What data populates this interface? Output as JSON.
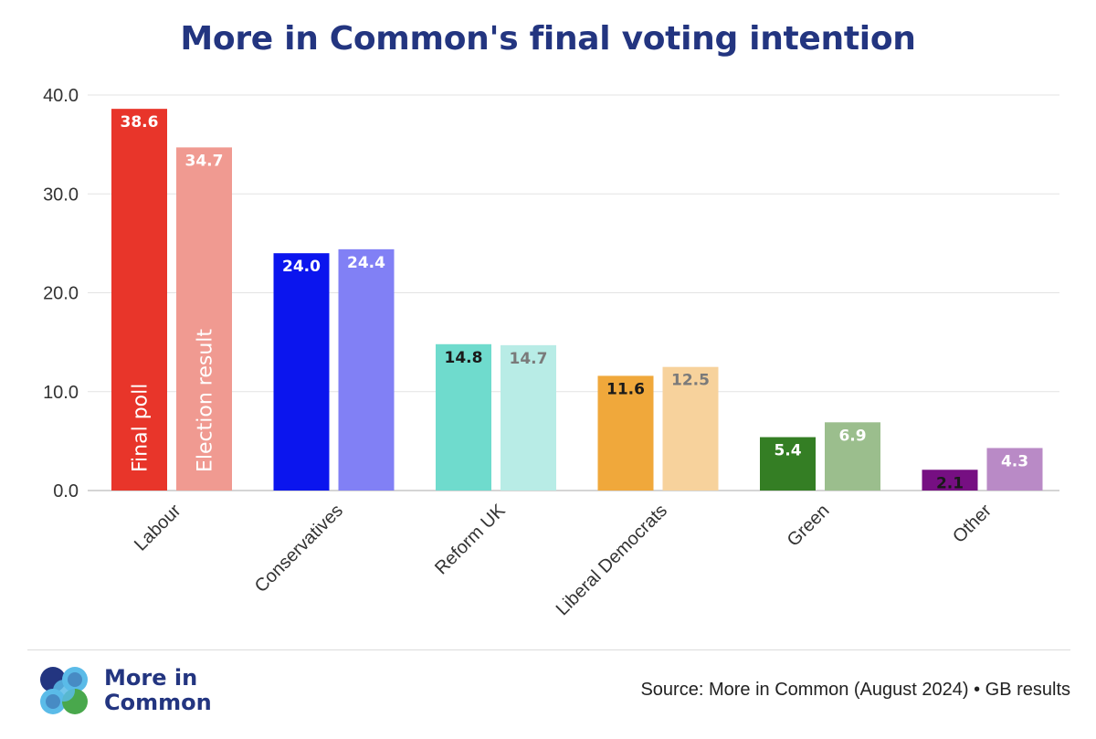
{
  "chart_data": {
    "type": "bar",
    "title": "More in Common's final voting intention",
    "categories": [
      "Labour",
      "Conservatives",
      "Reform UK",
      "Liberal Democrats",
      "Green",
      "Other"
    ],
    "series": [
      {
        "name": "Final poll",
        "values": [
          38.6,
          24.0,
          14.8,
          11.6,
          5.4,
          2.1
        ]
      },
      {
        "name": "Election result",
        "values": [
          34.7,
          24.4,
          14.7,
          12.5,
          6.9,
          4.3
        ]
      }
    ],
    "value_labels": {
      "Final poll": [
        "38.6",
        "24.0",
        "14.8",
        "11.6",
        "5.4",
        "2.1"
      ],
      "Election result": [
        "34.7",
        "24.4",
        "14.7",
        "12.5",
        "6.9",
        "4.3"
      ]
    },
    "colors": {
      "Final poll": [
        "#e8352a",
        "#0b15ee",
        "#6fdbcd",
        "#f0a83b",
        "#347e24",
        "#760f82"
      ],
      "Election result": [
        "#f09a91",
        "#8180f5",
        "#b8ece6",
        "#f7d29c",
        "#9bbe8d",
        "#b98ac6"
      ]
    },
    "label_colors": {
      "Final poll": [
        "#ffffff",
        "#ffffff",
        "#1a1a1a",
        "#1a1a1a",
        "#ffffff",
        "#1a1a1a"
      ],
      "Election result": [
        "#ffffff",
        "#ffffff",
        "#7a7a7a",
        "#7a7a7a",
        "#ffffff",
        "#ffffff"
      ]
    },
    "ylim": [
      0,
      40
    ],
    "yticks": [
      "0.0",
      "10.0",
      "20.0",
      "30.0",
      "40.0"
    ],
    "ytick_values": [
      0,
      10,
      20,
      30,
      40
    ],
    "grid": true,
    "legend": "inside first group bars (vertical text)",
    "xlabel": "",
    "ylabel": ""
  },
  "brand": {
    "name": "More in Common",
    "line1": "More in",
    "line2": "Common"
  },
  "source": "Source: More in Common (August 2024) • GB results",
  "colors": {
    "title": "#233580",
    "grid": "#e3e3e3",
    "axis": "#c7c7c7",
    "logo_blue": "#233580",
    "logo_light": "#5bbbe8",
    "logo_green": "#49a84c"
  }
}
